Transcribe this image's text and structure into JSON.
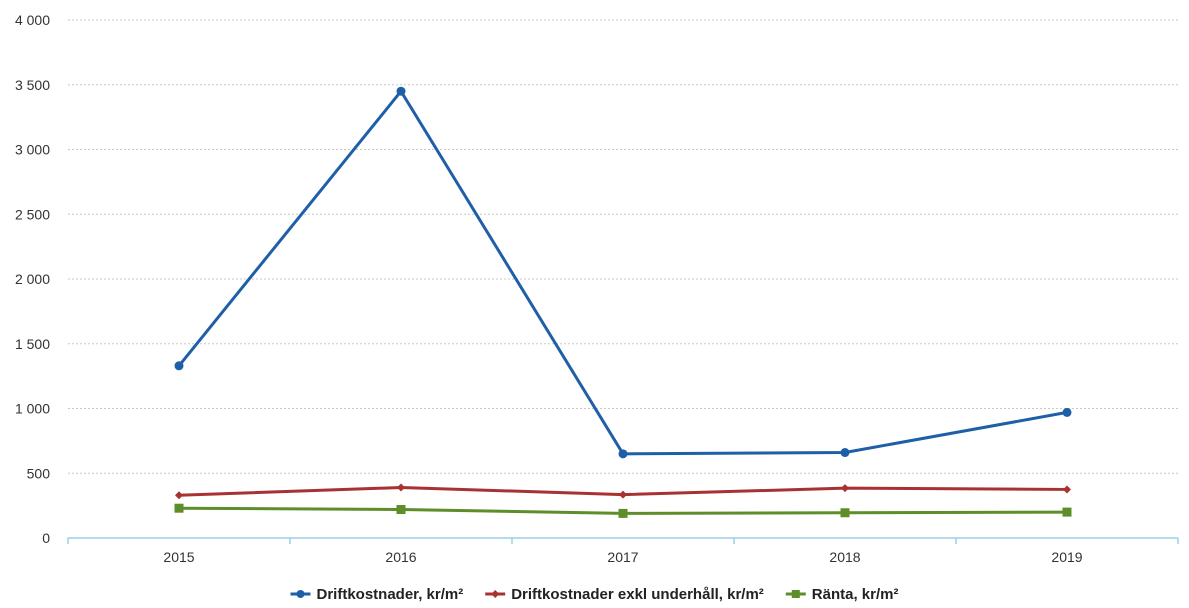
{
  "chart_data": {
    "type": "line",
    "title": "",
    "xlabel": "",
    "ylabel": "",
    "categories": [
      "2015",
      "2016",
      "2017",
      "2018",
      "2019"
    ],
    "ylim": [
      0,
      4000
    ],
    "yticks": [
      0,
      500,
      1000,
      1500,
      2000,
      2500,
      3000,
      3500,
      4000
    ],
    "ytick_labels": [
      "0",
      "500",
      "1 000",
      "1 500",
      "2 000",
      "2 500",
      "3 000",
      "3 500",
      "4 000"
    ],
    "grid": true,
    "legend_position": "bottom",
    "series": [
      {
        "name": "Driftkostnader, kr/m²",
        "values": [
          1330,
          3450,
          650,
          660,
          970
        ],
        "color": "#1f5fa8",
        "marker": "circle"
      },
      {
        "name": "Driftkostnader exkl underhåll, kr/m²",
        "values": [
          330,
          390,
          335,
          385,
          375
        ],
        "color": "#a83232",
        "marker": "diamond"
      },
      {
        "name": "Ränta, kr/m²",
        "values": [
          230,
          220,
          190,
          195,
          200
        ],
        "color": "#5e8e2a",
        "marker": "square"
      }
    ]
  }
}
